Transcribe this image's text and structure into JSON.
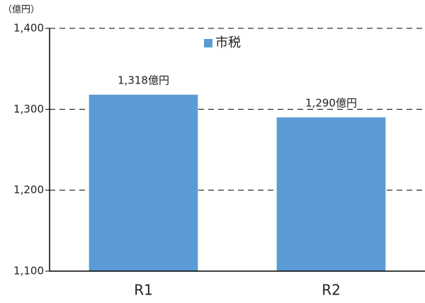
{
  "chart_data": {
    "type": "bar",
    "y_axis_label": "（億円）",
    "categories": [
      "R1",
      "R2"
    ],
    "series": [
      {
        "name": "市税",
        "color": "#5b9bd5",
        "values": [
          1318,
          1290
        ],
        "value_labels": [
          "1,318億円",
          "1,290億円"
        ]
      }
    ],
    "ylim": [
      1100,
      1400
    ],
    "yticks": [
      {
        "value": 1100,
        "label": "1,100"
      },
      {
        "value": 1200,
        "label": "1,200"
      },
      {
        "value": 1300,
        "label": "1,300"
      },
      {
        "value": 1400,
        "label": "1,400"
      }
    ],
    "grid": true,
    "legend": "top"
  }
}
